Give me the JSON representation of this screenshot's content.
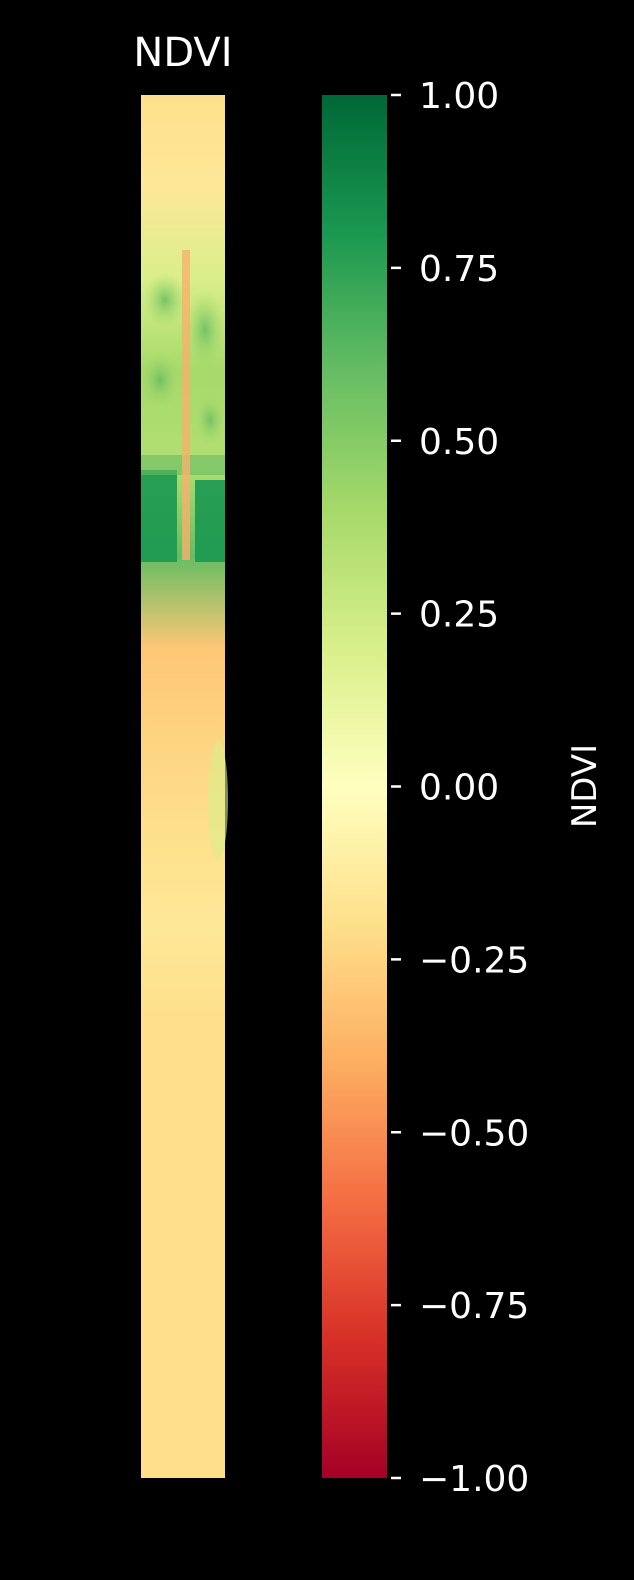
{
  "chart_data": {
    "type": "heatmap",
    "title": "NDVI",
    "colorbar": {
      "label": "NDVI",
      "colormap": "RdYlGn",
      "range": [
        -1.0,
        1.0
      ],
      "ticks": [
        1.0,
        0.75,
        0.5,
        0.25,
        0.0,
        -0.25,
        -0.5,
        -0.75,
        -1.0
      ],
      "tick_labels": [
        "1.00",
        "0.75",
        "0.50",
        "0.25",
        "0.00",
        "−0.25",
        "−0.50",
        "−0.75",
        "−1.00"
      ],
      "colors": [
        "#a50026",
        "#d73027",
        "#f46d43",
        "#fdae61",
        "#fee08b",
        "#ffffbf",
        "#d9ef8b",
        "#a6d96a",
        "#66bd63",
        "#1a9850",
        "#006837"
      ]
    },
    "image_profile": {
      "description_rows": "NDVI value by row from top to bottom of the strip",
      "rows": [
        -0.2,
        -0.15,
        0.2,
        0.4,
        0.35,
        0.6,
        -0.3,
        -0.25,
        -0.2,
        -0.15,
        -0.2,
        -0.2,
        -0.2,
        -0.2,
        -0.2,
        -0.2
      ]
    }
  }
}
